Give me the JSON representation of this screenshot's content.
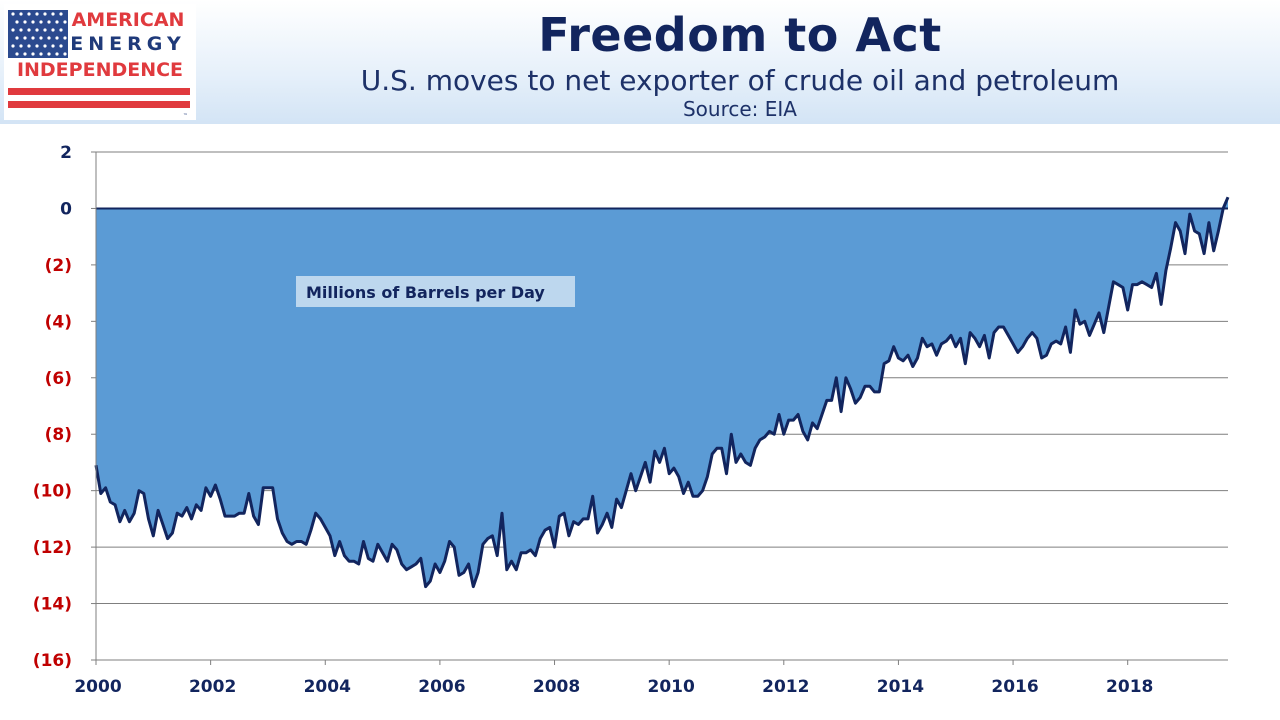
{
  "logo": {
    "line1": "AMERICAN",
    "line2": "ENERGY",
    "line3": "INDEPENDENCE",
    "tm": "™",
    "colors": {
      "red": "#e03a3e",
      "navy": "#1f3a7a",
      "stars": "#2b4a8f"
    }
  },
  "header": {
    "title": "Freedom to Act",
    "subtitle": "U.S. moves to net exporter of crude oil and petroleum",
    "source": "Source: EIA"
  },
  "chart_data": {
    "type": "area",
    "series": [
      {
        "start_year": 2000,
        "values": [
          -9.1,
          -10.1,
          -9.9,
          -10.4,
          -10.5,
          -11.1,
          -10.7,
          -11.1,
          -10.8,
          -10.0,
          -10.1,
          -11.0,
          -11.6,
          -10.7,
          -11.2,
          -11.7,
          -11.5,
          -10.8,
          -10.9,
          -10.6,
          -11.0,
          -10.5,
          -10.7,
          -9.9,
          -10.2,
          -9.8,
          -10.3,
          -10.9,
          -10.9,
          -10.9,
          -10.8,
          -10.8,
          -10.1,
          -10.9,
          -11.2,
          -9.9,
          -9.9,
          -9.9,
          -11.0,
          -11.5,
          -11.8,
          -11.9,
          -11.8,
          -11.8,
          -11.9,
          -11.4,
          -10.8,
          -11.0,
          -11.3,
          -11.6,
          -12.3,
          -11.8,
          -12.3,
          -12.5,
          -12.5,
          -12.6,
          -11.8,
          -12.4,
          -12.5,
          -11.9,
          -12.2,
          -12.5,
          -11.9,
          -12.1,
          -12.6,
          -12.8,
          -12.7,
          -12.6,
          -12.4,
          -13.4,
          -13.2,
          -12.6,
          -12.9,
          -12.5,
          -11.8,
          -12.0,
          -13.0,
          -12.9,
          -12.6,
          -13.4,
          -12.9,
          -11.9,
          -11.7,
          -11.6,
          -12.3,
          -10.8,
          -12.8,
          -12.5,
          -12.8,
          -12.2,
          -12.2,
          -12.1,
          -12.3,
          -11.7,
          -11.4,
          -11.3,
          -12.0,
          -10.9,
          -10.8,
          -11.6,
          -11.1,
          -11.2,
          -11.0,
          -11.0,
          -10.2,
          -11.5,
          -11.2,
          -10.8,
          -11.3,
          -10.3,
          -10.6,
          -10.0,
          -9.4,
          -10.0,
          -9.5,
          -9.0,
          -9.7,
          -8.6,
          -9.0,
          -8.5,
          -9.4,
          -9.2,
          -9.5,
          -10.1,
          -9.7,
          -10.2,
          -10.2,
          -10.0,
          -9.5,
          -8.7,
          -8.5,
          -8.5,
          -9.4,
          -8.0,
          -9.0,
          -8.7,
          -9.0,
          -9.1,
          -8.5,
          -8.2,
          -8.1,
          -7.9,
          -8.0,
          -7.3,
          -8.0,
          -7.5,
          -7.5,
          -7.3,
          -7.9,
          -8.2,
          -7.6,
          -7.8,
          -7.3,
          -6.8,
          -6.8,
          -6.0,
          -7.2,
          -6.0,
          -6.4,
          -6.9,
          -6.7,
          -6.3,
          -6.3,
          -6.5,
          -6.5,
          -5.5,
          -5.4,
          -4.9,
          -5.3,
          -5.4,
          -5.2,
          -5.6,
          -5.3,
          -4.6,
          -4.9,
          -4.8,
          -5.2,
          -4.8,
          -4.7,
          -4.5,
          -4.9,
          -4.6,
          -5.5,
          -4.4,
          -4.6,
          -4.9,
          -4.5,
          -5.3,
          -4.4,
          -4.2,
          -4.2,
          -4.5,
          -4.8,
          -5.1,
          -4.9,
          -4.6,
          -4.4,
          -4.6,
          -5.3,
          -5.2,
          -4.8,
          -4.7,
          -4.8,
          -4.2,
          -5.1,
          -3.6,
          -4.1,
          -4.0,
          -4.5,
          -4.1,
          -3.7,
          -4.4,
          -3.5,
          -2.6,
          -2.7,
          -2.8,
          -3.6,
          -2.7,
          -2.7,
          -2.6,
          -2.7,
          -2.8,
          -2.3,
          -3.4,
          -2.2,
          -1.4,
          -0.5,
          -0.8,
          -1.6,
          -0.2,
          -0.8,
          -0.9,
          -1.6,
          -0.5,
          -1.5,
          -0.8,
          0.0,
          0.4
        ]
      }
    ],
    "annotation": "Millions of Barrels per Day",
    "y_ticks": [
      2,
      0,
      -2,
      -4,
      -6,
      -8,
      -10,
      -12,
      -14,
      -16
    ],
    "y_tick_labels": [
      "2",
      "0",
      "(2)",
      "(4)",
      "(6)",
      "(8)",
      "(10)",
      "(12)",
      "(14)",
      "(16)"
    ],
    "x_ticks": [
      2000,
      2002,
      2004,
      2006,
      2008,
      2010,
      2012,
      2014,
      2016,
      2018
    ],
    "x_tick_labels": [
      "2000",
      "2002",
      "2004",
      "2006",
      "2008",
      "2010",
      "2012",
      "2014",
      "2016",
      "2018"
    ],
    "xlim": [
      2000,
      2019.75
    ],
    "ylim": [
      -16,
      2
    ],
    "grid": true,
    "colors": {
      "area": "#5b9bd5",
      "line": "#12255e",
      "zero_line": "#12255e",
      "grid": "#7f7f7f",
      "negative_label": "#c00000",
      "positive_label": "#12255e",
      "annotation_bg": "#bdd7ee"
    }
  }
}
